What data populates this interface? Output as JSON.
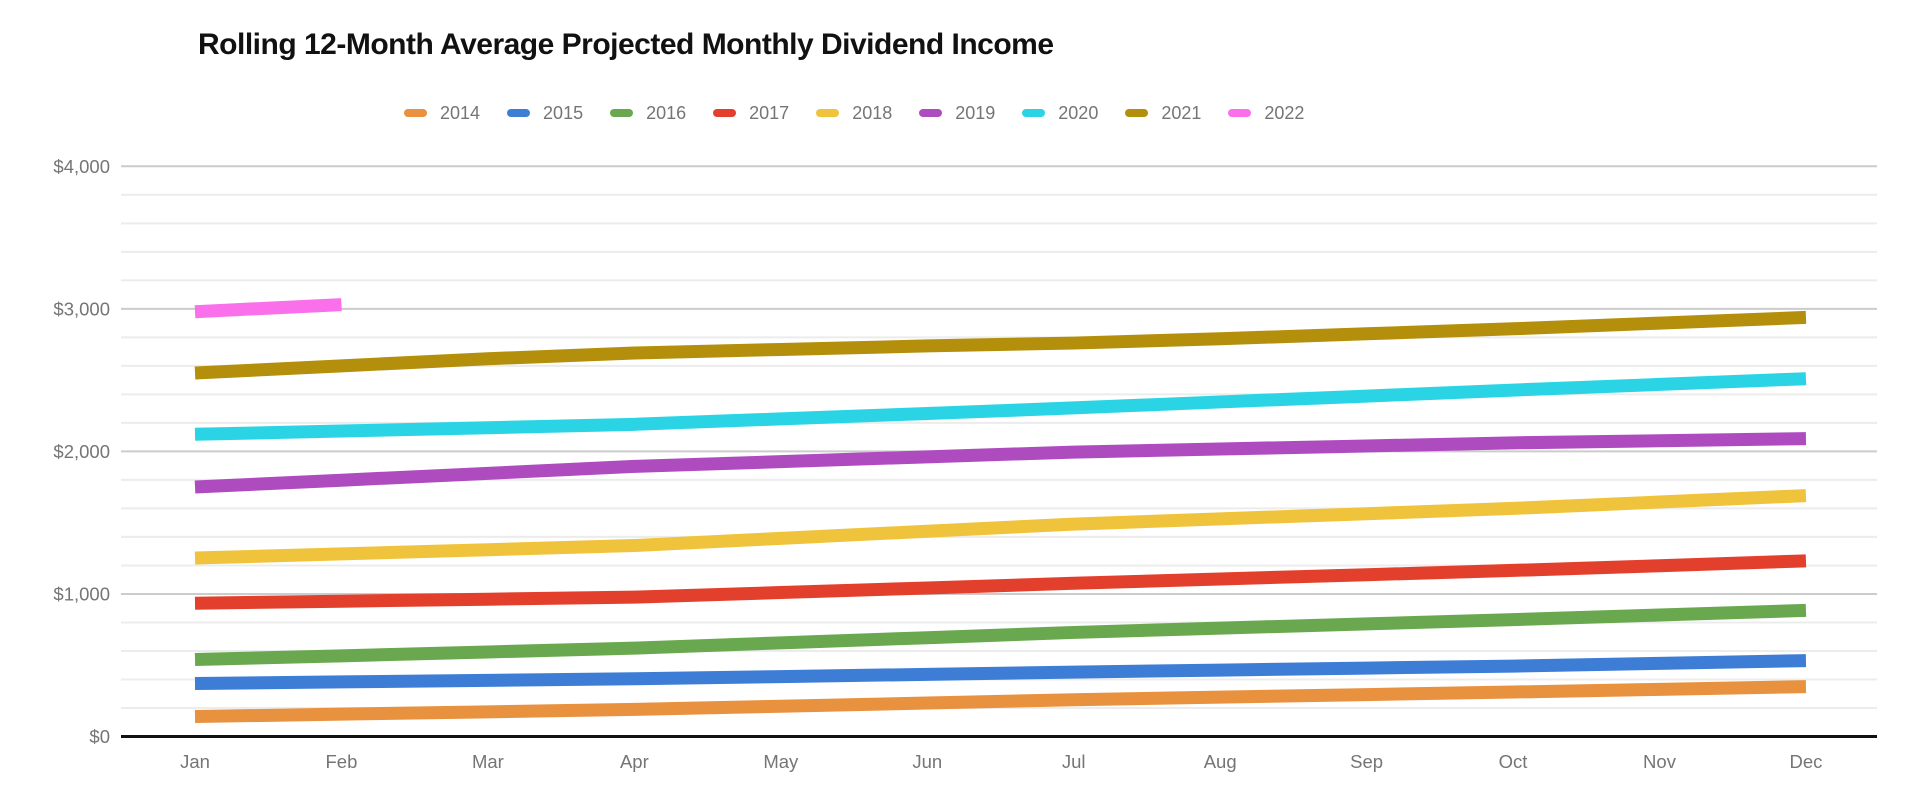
{
  "title": "Rolling 12-Month Average Projected Monthly Dividend Income",
  "chart_data": {
    "type": "line",
    "title": "Rolling 12-Month Average Projected Monthly Dividend Income",
    "xlabel": "",
    "ylabel": "",
    "x": [
      "Jan",
      "Feb",
      "Mar",
      "Apr",
      "May",
      "Jun",
      "Jul",
      "Aug",
      "Sep",
      "Oct",
      "Nov",
      "Dec"
    ],
    "ylim": [
      0,
      4000
    ],
    "y_ticks": [
      {
        "value": 0,
        "label": "$0"
      },
      {
        "value": 1000,
        "label": "$1,000"
      },
      {
        "value": 2000,
        "label": "$2,000"
      },
      {
        "value": 3000,
        "label": "$3,000"
      },
      {
        "value": 4000,
        "label": "$4,000"
      }
    ],
    "minor_grid_step": 200,
    "major_grid_step": 1000,
    "grid": "on",
    "legend_position": "top",
    "line_width": 13,
    "series": [
      {
        "name": "2014",
        "color": "#E8913F",
        "values": [
          140,
          157,
          173,
          190,
          212,
          235,
          258,
          276,
          294,
          312,
          331,
          350
        ]
      },
      {
        "name": "2015",
        "color": "#3D7DD6",
        "values": [
          372,
          383,
          394,
          405,
          420,
          436,
          452,
          466,
          480,
          494,
          513,
          532
        ]
      },
      {
        "name": "2016",
        "color": "#69A84F",
        "values": [
          540,
          566,
          593,
          620,
          657,
          693,
          730,
          760,
          790,
          820,
          852,
          885
        ]
      },
      {
        "name": "2017",
        "color": "#E2402D",
        "values": [
          935,
          949,
          963,
          978,
          1010,
          1042,
          1075,
          1105,
          1135,
          1165,
          1198,
          1232
        ]
      },
      {
        "name": "2018",
        "color": "#F0C33C",
        "values": [
          1252,
          1281,
          1310,
          1340,
          1390,
          1440,
          1490,
          1527,
          1563,
          1600,
          1645,
          1690
        ]
      },
      {
        "name": "2019",
        "color": "#AE4CBF",
        "values": [
          1750,
          1798,
          1846,
          1895,
          1928,
          1962,
          1995,
          2017,
          2038,
          2060,
          2075,
          2090
        ]
      },
      {
        "name": "2020",
        "color": "#2BD4E4",
        "values": [
          2120,
          2143,
          2166,
          2190,
          2228,
          2266,
          2305,
          2347,
          2388,
          2430,
          2470,
          2510
        ]
      },
      {
        "name": "2021",
        "color": "#B38F0B",
        "values": [
          2550,
          2600,
          2650,
          2690,
          2715,
          2740,
          2760,
          2790,
          2825,
          2860,
          2900,
          2940
        ]
      },
      {
        "name": "2022",
        "color": "#FA70EB",
        "values": [
          2980,
          3030
        ]
      }
    ],
    "colors": {
      "axis_label": "#757575",
      "minor_gridline": "#ECECEC",
      "major_gridline": "#CCCCCC",
      "baseline": "#111111",
      "title": "#111111",
      "background": "#FFFFFF"
    }
  }
}
